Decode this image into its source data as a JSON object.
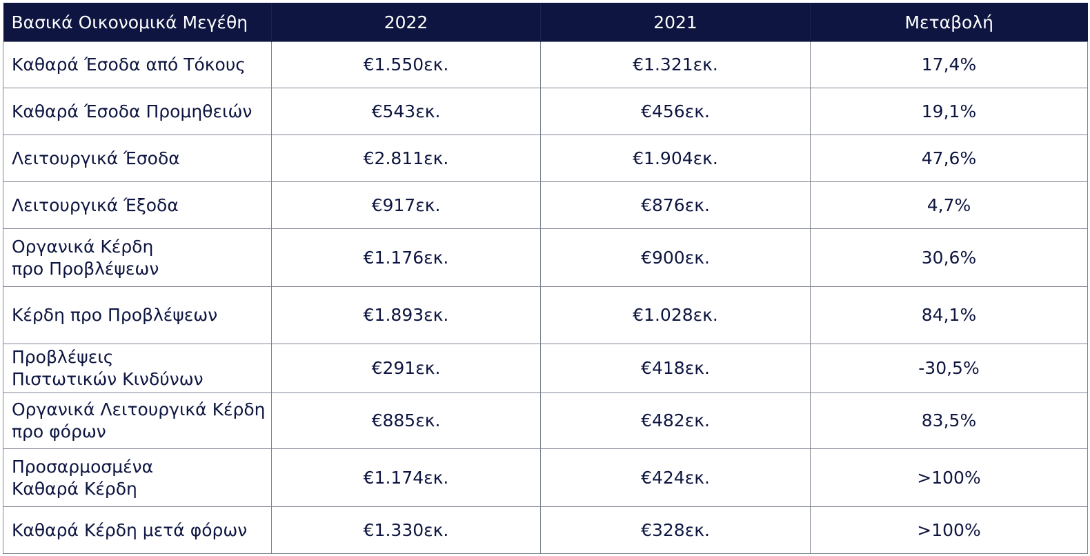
{
  "table": {
    "headers": [
      "Βασικά Οικονομικά Μεγέθη",
      "2022",
      "2021",
      "Μεταβολή"
    ],
    "rows": [
      [
        "Καθαρά Έσοδα από Τόκους",
        "€1.550εκ.",
        "€1.321εκ.",
        "17,4%"
      ],
      [
        "Καθαρά Έσοδα Προμηθειών",
        "€543εκ.",
        "€456εκ.",
        "19,1%"
      ],
      [
        "Λειτουργικά Έσοδα",
        "€2.811εκ.",
        "€1.904εκ.",
        "47,6%"
      ],
      [
        "Λειτουργικά Έξοδα",
        "€917εκ.",
        "€876εκ.",
        "4,7%"
      ],
      [
        "Οργανικά Κέρδη\nπρο Προβλέψεων",
        "€1.176εκ.",
        "€900εκ.",
        "30,6%"
      ],
      [
        "Κέρδη προ Προβλέψεων",
        "€1.893εκ.",
        "€1.028εκ.",
        "84,1%"
      ],
      [
        "Προβλέψεις\nΠιστωτικών Κινδύνων",
        "€291εκ.",
        "€418εκ.",
        "-30,5%"
      ],
      [
        "Οργανικά Λειτουργικά Κέρδη\nπρο φόρων",
        "€885εκ.",
        "€482εκ.",
        "83,5%"
      ],
      [
        "Προσαρμοσμένα\nΚαθαρά Κέρδη",
        "€1.174εκ.",
        "€424εκ.",
        ">100%"
      ],
      [
        "Καθαρά Κέρδη μετά φόρων",
        "€1.330εκ.",
        "€328εκ.",
        ">100%"
      ]
    ]
  },
  "colors": {
    "header_bg": "#0d1540",
    "header_text": "#ffffff",
    "body_text": "#0d1540",
    "border": "#7d8290"
  }
}
